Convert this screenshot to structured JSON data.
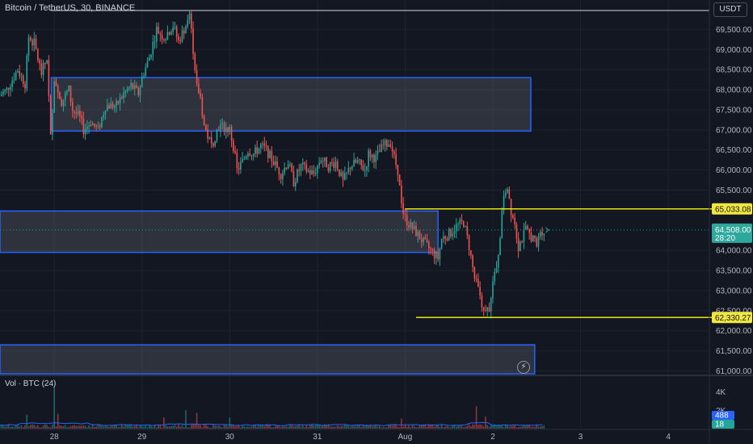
{
  "header": {
    "symbol_title": "Bitcoin / TetherUS, 30, BINANCE",
    "currency_button": "USDT"
  },
  "volume_pane": {
    "title": "Vol · BTC (24)",
    "axis_labels": [
      "4K",
      "2K"
    ],
    "last_values": [
      "488",
      "18"
    ],
    "scale_max": 4600
  },
  "colors": {
    "up": "#26a69a",
    "down": "#ef5350",
    "zone_border": "#2962ff",
    "level_line": "#e6e600",
    "level_label_bg": "#f2e640",
    "price_label_bg": "#2ea89c",
    "background": "#131722"
  },
  "icons": {
    "replay": "lightning-icon"
  },
  "chart_data": {
    "type": "candlestick",
    "title": "Bitcoin / TetherUS, 30, BINANCE",
    "y_range": [
      60930,
      69950
    ],
    "y_ticks": [
      {
        "value": 69500,
        "label": "69,500.00"
      },
      {
        "value": 69000,
        "label": "69,000.00"
      },
      {
        "value": 68500,
        "label": "68,500.00"
      },
      {
        "value": 68000,
        "label": "68,000.00"
      },
      {
        "value": 67500,
        "label": "67,500.00"
      },
      {
        "value": 67000,
        "label": "67,000.00"
      },
      {
        "value": 66500,
        "label": "66,500.00"
      },
      {
        "value": 66000,
        "label": "66,000.00"
      },
      {
        "value": 65500,
        "label": "65,500.00"
      },
      {
        "value": 64000,
        "label": "64,000.00"
      },
      {
        "value": 63500,
        "label": "63,500.00"
      },
      {
        "value": 63000,
        "label": "63,000.00"
      },
      {
        "value": 62500,
        "label": "62,500.00"
      },
      {
        "value": 62000,
        "label": "62,000.00"
      },
      {
        "value": 61500,
        "label": "61,500.00"
      },
      {
        "value": 61000,
        "label": "61,000.00"
      }
    ],
    "x_ticks": [
      {
        "t": 0,
        "label": "28"
      },
      {
        "t": 48,
        "label": "29"
      },
      {
        "t": 96,
        "label": "30"
      },
      {
        "t": 144,
        "label": "31"
      },
      {
        "t": 192,
        "label": "Aug"
      },
      {
        "t": 240,
        "label": "2"
      },
      {
        "t": 288,
        "label": "3"
      },
      {
        "t": 336,
        "label": "4"
      }
    ],
    "x_unit": "30-minute bars from 28 Jul 00:00",
    "x_range": [
      -29.7,
      358.5
    ],
    "keypoints": [
      [
        -30,
        67850
      ],
      [
        -26,
        68000
      ],
      [
        -20,
        68500
      ],
      [
        -16,
        68150
      ],
      [
        -14,
        69300
      ],
      [
        -11,
        69150
      ],
      [
        -7,
        68400
      ],
      [
        -4,
        68800
      ],
      [
        -2,
        66800
      ],
      [
        0,
        68300
      ],
      [
        4,
        67700
      ],
      [
        8,
        68000
      ],
      [
        10,
        67500
      ],
      [
        14,
        67300
      ],
      [
        16,
        67000
      ],
      [
        20,
        67200
      ],
      [
        24,
        67000
      ],
      [
        28,
        67600
      ],
      [
        34,
        67600
      ],
      [
        38,
        67900
      ],
      [
        42,
        68100
      ],
      [
        46,
        67900
      ],
      [
        48,
        68300
      ],
      [
        52,
        68800
      ],
      [
        56,
        69500
      ],
      [
        60,
        69300
      ],
      [
        65,
        69600
      ],
      [
        68,
        69200
      ],
      [
        72,
        69600
      ],
      [
        74,
        69900
      ],
      [
        76,
        69000
      ],
      [
        78,
        68100
      ],
      [
        80,
        67800
      ],
      [
        82,
        67100
      ],
      [
        86,
        66600
      ],
      [
        90,
        67100
      ],
      [
        96,
        67000
      ],
      [
        98,
        66600
      ],
      [
        100,
        66000
      ],
      [
        103,
        66200
      ],
      [
        106,
        66500
      ],
      [
        109,
        66400
      ],
      [
        113,
        66600
      ],
      [
        116,
        66500
      ],
      [
        120,
        66200
      ],
      [
        124,
        65900
      ],
      [
        128,
        66200
      ],
      [
        131,
        65700
      ],
      [
        135,
        66100
      ],
      [
        138,
        66000
      ],
      [
        142,
        65900
      ],
      [
        146,
        66300
      ],
      [
        150,
        66100
      ],
      [
        154,
        66200
      ],
      [
        158,
        65700
      ],
      [
        162,
        66100
      ],
      [
        166,
        66200
      ],
      [
        170,
        66000
      ],
      [
        172,
        66400
      ],
      [
        176,
        66300
      ],
      [
        180,
        66600
      ],
      [
        184,
        66700
      ],
      [
        186,
        66300
      ],
      [
        188,
        66000
      ],
      [
        190,
        65100
      ],
      [
        192,
        64800
      ],
      [
        195,
        64600
      ],
      [
        198,
        64450
      ],
      [
        202,
        64200
      ],
      [
        206,
        64000
      ],
      [
        210,
        63800
      ],
      [
        212,
        64300
      ],
      [
        216,
        64400
      ],
      [
        220,
        64600
      ],
      [
        224,
        64700
      ],
      [
        227,
        64100
      ],
      [
        230,
        63300
      ],
      [
        233,
        62900
      ],
      [
        235,
        62400
      ],
      [
        238,
        62600
      ],
      [
        240,
        63200
      ],
      [
        242,
        63500
      ],
      [
        244,
        64400
      ],
      [
        246,
        65400
      ],
      [
        248,
        65600
      ],
      [
        250,
        65000
      ],
      [
        252,
        64700
      ],
      [
        254,
        64100
      ],
      [
        256,
        64300
      ],
      [
        258,
        64500
      ],
      [
        262,
        64300
      ],
      [
        264,
        64100
      ],
      [
        266,
        64500
      ],
      [
        268,
        64480
      ]
    ],
    "volume_spikes": [
      [
        -15,
        1500
      ],
      [
        0,
        4500
      ],
      [
        2,
        1600
      ],
      [
        60,
        1200
      ],
      [
        72,
        2000
      ],
      [
        78,
        1700
      ],
      [
        96,
        1200
      ],
      [
        190,
        1100
      ],
      [
        231,
        2400
      ],
      [
        236,
        1300
      ]
    ],
    "last_price": {
      "value": 64508,
      "label": "64,508.00",
      "countdown": "28:20"
    },
    "levels": [
      {
        "value": 65033.08,
        "label": "65,033.08",
        "from_t": 192
      },
      {
        "value": 62330.27,
        "label": "62,330.27",
        "from_t": 198
      }
    ],
    "zones": [
      {
        "from_t": -1.6,
        "to_t": 260.8,
        "top": 68300,
        "bottom": 66970
      },
      {
        "from_t": -30,
        "to_t": 210.0,
        "top": 64980,
        "bottom": 63950
      },
      {
        "from_t": -30,
        "to_t": 262.9,
        "top": 61650,
        "bottom": 60930
      }
    ],
    "max_line": {
      "value": 69970
    }
  }
}
